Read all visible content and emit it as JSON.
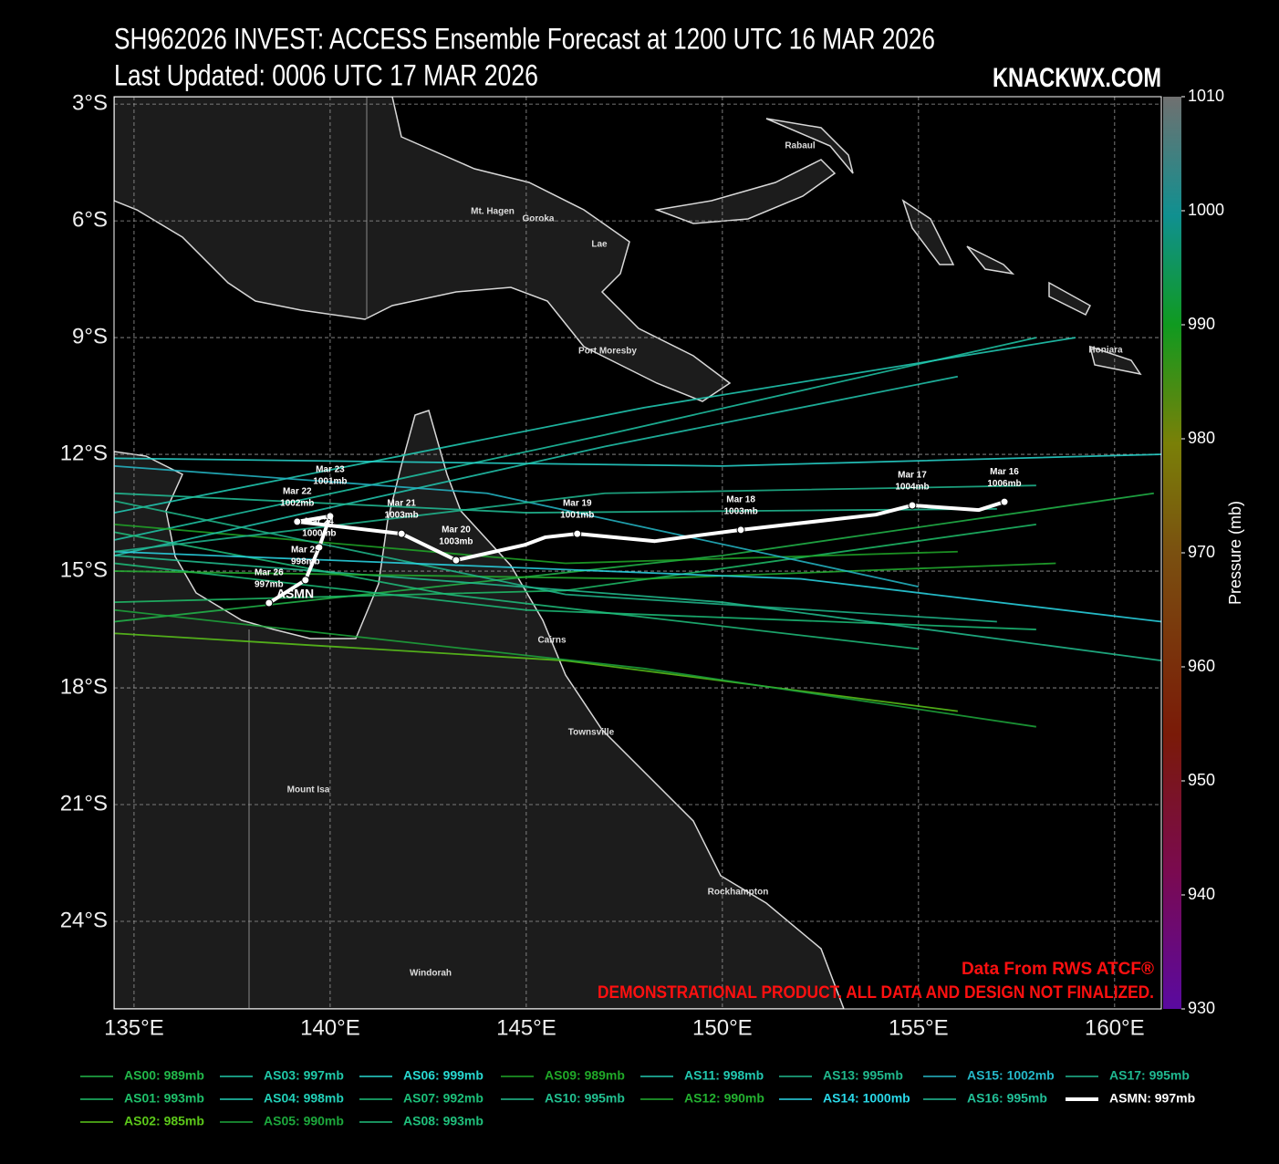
{
  "header": {
    "title": "SH962026 INVEST: ACCESS Ensemble Forecast at 1200 UTC 16 MAR 2026",
    "subtitle": "Last Updated: 0006 UTC 17 MAR 2026",
    "brand": "KNACKWX.COM"
  },
  "map": {
    "xlim": [
      134.49,
      161.19
    ],
    "ylim": [
      -26.25,
      -2.81
    ],
    "xticks": [
      {
        "value": 135,
        "label": "135°E"
      },
      {
        "value": 140,
        "label": "140°E"
      },
      {
        "value": 145,
        "label": "145°E"
      },
      {
        "value": 150,
        "label": "150°E"
      },
      {
        "value": 155,
        "label": "155°E"
      },
      {
        "value": 160,
        "label": "160°E"
      }
    ],
    "yticks": [
      {
        "value": -3,
        "label": "3°S"
      },
      {
        "value": -6,
        "label": "6°S"
      },
      {
        "value": -9,
        "label": "9°S"
      },
      {
        "value": -12,
        "label": "12°S"
      },
      {
        "value": -15,
        "label": "15°S"
      },
      {
        "value": -18,
        "label": "18°S"
      },
      {
        "value": -21,
        "label": "21°S"
      },
      {
        "value": -24,
        "label": "24°S"
      }
    ],
    "grid": true,
    "places": [
      "Rabaul",
      "Mt. Hagen",
      "Goroka",
      "Lae",
      "Port Moresby",
      "Honiara",
      "Cairns",
      "Townsville",
      "Mount Isa",
      "Rockhampton",
      "Windorah"
    ]
  },
  "colorbar": {
    "label": "Pressure (mb)",
    "lim": [
      930,
      1010
    ],
    "ticks": [
      930,
      940,
      950,
      960,
      970,
      980,
      990,
      1000,
      1010
    ]
  },
  "members": [
    {
      "name": "AS00: 989mb",
      "color": "#22b84a",
      "lon": [
        161,
        150,
        134.5
      ],
      "lat": [
        -13.0,
        -14.6,
        -16.3
      ]
    },
    {
      "name": "AS01: 993mb",
      "color": "#1fc06a",
      "lon": [
        158,
        146,
        134.5
      ],
      "lat": [
        -13.8,
        -15.5,
        -15.8
      ]
    },
    {
      "name": "AS02: 985mb",
      "color": "#5cc81a",
      "lon": [
        156,
        146,
        134.5
      ],
      "lat": [
        -18.6,
        -17.3,
        -16.6
      ]
    },
    {
      "name": "AS03: 997mb",
      "color": "#20c8a8",
      "lon": [
        158,
        147,
        134.5
      ],
      "lat": [
        -9.0,
        -11.5,
        -14.2
      ]
    },
    {
      "name": "AS04: 998mb",
      "color": "#22d0b8",
      "lon": [
        159,
        148,
        134.5
      ],
      "lat": [
        -9.0,
        -10.8,
        -13.5
      ]
    },
    {
      "name": "AS05: 990mb",
      "color": "#1da83c",
      "lon": [
        158,
        148,
        134.5
      ],
      "lat": [
        -19.0,
        -17.5,
        -16.0
      ]
    },
    {
      "name": "AS06: 999mb",
      "color": "#28d8d0",
      "lon": [
        161.2,
        150,
        134.5
      ],
      "lat": [
        -12.0,
        -12.3,
        -12.1
      ]
    },
    {
      "name": "AS07: 992mb",
      "color": "#1cc07a",
      "lon": [
        158,
        145,
        134.5
      ],
      "lat": [
        -16.5,
        -16.0,
        -14.8
      ]
    },
    {
      "name": "AS08: 993mb",
      "color": "#20c07c",
      "lon": [
        155,
        143,
        134.5
      ],
      "lat": [
        -17.0,
        -15.6,
        -14.0
      ]
    },
    {
      "name": "AS09: 989mb",
      "color": "#20a828",
      "lon": [
        156,
        146,
        134.5
      ],
      "lat": [
        -14.5,
        -14.8,
        -13.8
      ]
    },
    {
      "name": "AS10: 995mb",
      "color": "#22c090",
      "lon": [
        161.2,
        150,
        134.5
      ],
      "lat": [
        -17.3,
        -15.8,
        -14.6
      ]
    },
    {
      "name": "AS11: 998mb",
      "color": "#22c8b0",
      "lon": [
        156,
        147,
        134.5
      ],
      "lat": [
        -10.0,
        -11.8,
        -14.6
      ]
    },
    {
      "name": "AS12: 990mb",
      "color": "#23b030",
      "lon": [
        158.5,
        148,
        134.5
      ],
      "lat": [
        -14.8,
        -15.2,
        -15.0
      ]
    },
    {
      "name": "AS13: 995mb",
      "color": "#20b88c",
      "lon": [
        157,
        146,
        134.5
      ],
      "lat": [
        -16.3,
        -15.6,
        -13.2
      ]
    },
    {
      "name": "AS14: 1000mb",
      "color": "#2ad8e8",
      "lon": [
        161.2,
        152,
        134.5
      ],
      "lat": [
        -16.3,
        -15.2,
        -14.5
      ]
    },
    {
      "name": "AS15: 1002mb",
      "color": "#25b8c8",
      "lon": [
        155,
        144,
        134.5
      ],
      "lat": [
        -15.4,
        -13.0,
        -12.3
      ]
    },
    {
      "name": "AS16: 995mb",
      "color": "#22c098",
      "lon": [
        157,
        145,
        134.5
      ],
      "lat": [
        -13.4,
        -13.5,
        -13.0
      ]
    },
    {
      "name": "AS17: 995mb",
      "color": "#20b890",
      "lon": [
        158,
        147,
        134.5
      ],
      "lat": [
        -12.8,
        -13.0,
        -14.5
      ]
    }
  ],
  "mean_track": {
    "name": "ASMN: 997mb",
    "label": "ASMN",
    "color": "#ffffff",
    "lon": [
      157.19,
      156.54,
      154.84,
      153.91,
      150.47,
      148.28,
      146.3,
      145.49,
      144.95,
      143.21,
      141.82,
      139.16,
      140.0,
      139.72,
      139.37,
      138.44
    ],
    "lat": [
      -13.22,
      -13.43,
      -13.31,
      -13.55,
      -13.94,
      -14.23,
      -14.04,
      -14.13,
      -14.33,
      -14.72,
      -14.04,
      -13.73,
      -13.59,
      -14.39,
      -15.23,
      -15.82
    ],
    "dates": [
      "Mar 16",
      null,
      "Mar 17",
      null,
      "Mar 18",
      null,
      "Mar 19",
      null,
      null,
      "Mar 20",
      "Mar 21",
      "Mar 22",
      "Mar 23",
      "Mar 24",
      "Mar 25",
      "Mar 26"
    ],
    "pressures": [
      "1006mb",
      null,
      "1004mb",
      null,
      "1003mb",
      null,
      "1001mb",
      null,
      null,
      "1003mb",
      "1003mb",
      "1002mb",
      "1001mb",
      "1000mb",
      "998mb",
      "997mb"
    ]
  },
  "annotations": [
    "Data From RWS ATCF®",
    "DEMONSTRATIONAL PRODUCT. ALL DATA AND DESIGN NOT FINALIZED."
  ]
}
